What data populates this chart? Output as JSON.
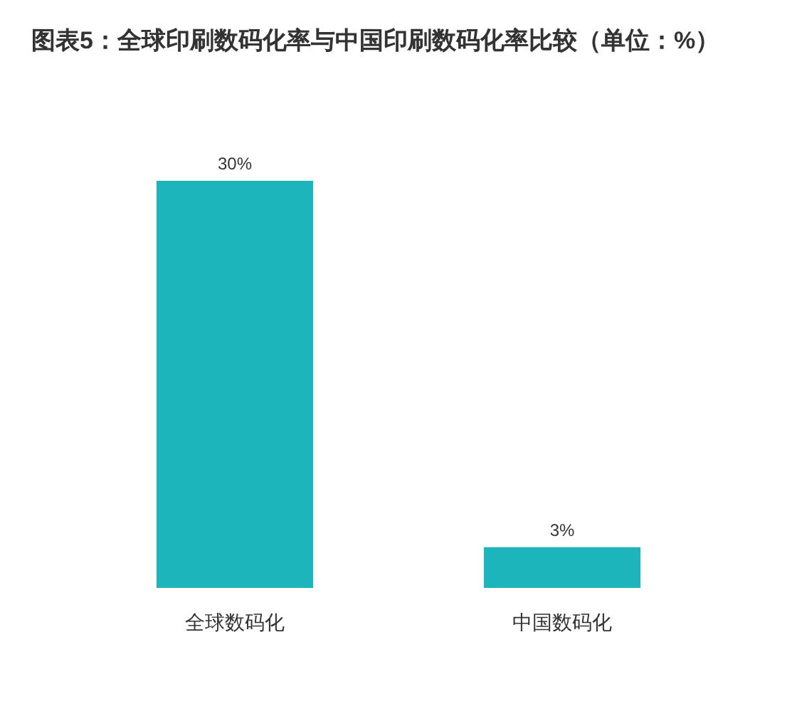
{
  "chart_data": {
    "type": "bar",
    "title": "图表5：全球印刷数码化率与中国印刷数码化率比较（单位：%）",
    "categories": [
      "全球数码化",
      "中国数码化"
    ],
    "values": [
      30,
      3
    ],
    "value_labels": [
      "30%",
      "3%"
    ],
    "color": "#1bb5bb"
  }
}
